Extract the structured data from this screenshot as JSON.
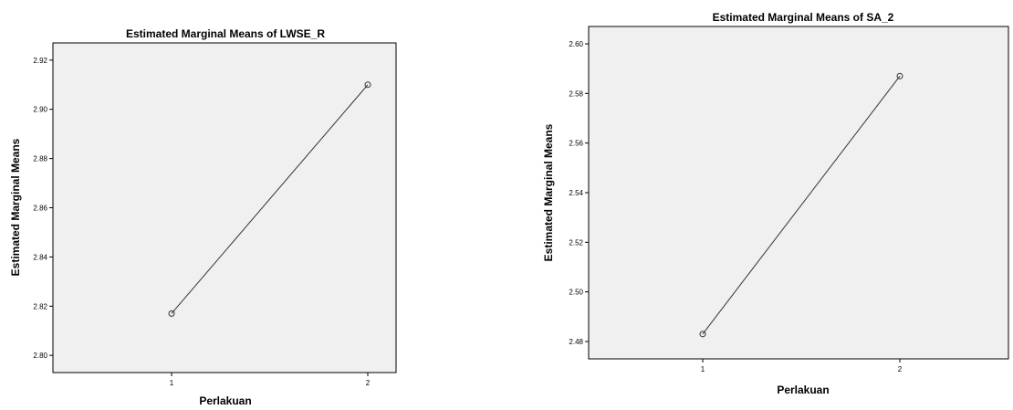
{
  "chart_data": [
    {
      "type": "line",
      "title": "Estimated Marginal Means of LWSE_R",
      "xlabel": "Perlakuan",
      "ylabel": "Estimated Marginal Means",
      "categories": [
        "1",
        "2"
      ],
      "values": [
        2.817,
        2.91
      ],
      "ylim": [
        2.793,
        2.927
      ],
      "yticks": [
        "2.80",
        "2.82",
        "2.84",
        "2.86",
        "2.88",
        "2.90",
        "2.92"
      ],
      "grid": false,
      "legend": "none",
      "colors": {
        "line": "#333333",
        "plot_bg": "#f0f0f0"
      }
    },
    {
      "type": "line",
      "title": "Estimated Marginal Means of SA_2",
      "xlabel": "Perlakuan",
      "ylabel": "Estimated Marginal Means",
      "categories": [
        "1",
        "2"
      ],
      "values": [
        2.483,
        2.587
      ],
      "ylim": [
        2.473,
        2.607
      ],
      "yticks": [
        "2.48",
        "2.50",
        "2.52",
        "2.54",
        "2.56",
        "2.58",
        "2.60"
      ],
      "grid": false,
      "legend": "none",
      "colors": {
        "line": "#333333",
        "plot_bg": "#f0f0f0"
      }
    }
  ]
}
